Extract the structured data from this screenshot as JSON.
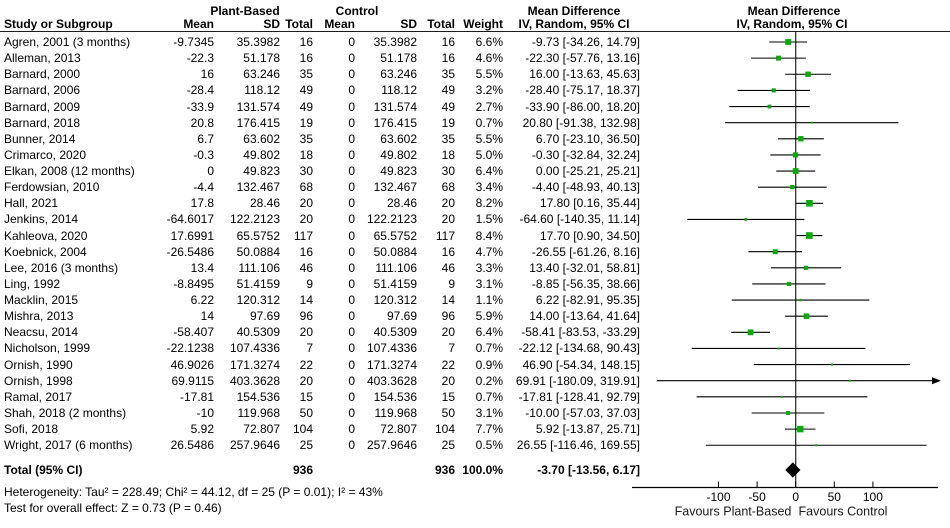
{
  "chart_data": {
    "type": "forest",
    "group_headers": {
      "plant_based": "Plant-Based",
      "control": "Control"
    },
    "column_headers": {
      "study": "Study or Subgroup",
      "pb_mean": "Mean",
      "pb_sd": "SD",
      "pb_total": "Total",
      "c_mean": "Mean",
      "c_sd": "SD",
      "c_total": "Total",
      "weight": "Weight",
      "md_title": "Mean Difference",
      "md_subtitle": "IV, Random, 95% CI",
      "plot_title": "Mean Difference",
      "plot_subtitle": "IV, Random, 95% CI"
    },
    "studies": [
      {
        "study": "Agren, 2001 (3 months)",
        "pb_mean": "-9.7345",
        "pb_sd": "35.3982",
        "pb_total": "16",
        "c_mean": "0",
        "c_sd": "35.3982",
        "c_total": "16",
        "weight": "6.6%",
        "md_label": "-9.73 [-34.26, 14.79]",
        "est": -9.73,
        "lo": -34.26,
        "hi": 14.79,
        "w": 6.6
      },
      {
        "study": "Alleman, 2013",
        "pb_mean": "-22.3",
        "pb_sd": "51.178",
        "pb_total": "16",
        "c_mean": "0",
        "c_sd": "51.178",
        "c_total": "16",
        "weight": "4.6%",
        "md_label": "-22.30 [-57.76, 13.16]",
        "est": -22.3,
        "lo": -57.76,
        "hi": 13.16,
        "w": 4.6
      },
      {
        "study": "Barnard, 2000",
        "pb_mean": "16",
        "pb_sd": "63.246",
        "pb_total": "35",
        "c_mean": "0",
        "c_sd": "63.246",
        "c_total": "35",
        "weight": "5.5%",
        "md_label": "16.00 [-13.63, 45.63]",
        "est": 16.0,
        "lo": -13.63,
        "hi": 45.63,
        "w": 5.5
      },
      {
        "study": "Barnard, 2006",
        "pb_mean": "-28.4",
        "pb_sd": "118.12",
        "pb_total": "49",
        "c_mean": "0",
        "c_sd": "118.12",
        "c_total": "49",
        "weight": "3.2%",
        "md_label": "-28.40 [-75.17, 18.37]",
        "est": -28.4,
        "lo": -75.17,
        "hi": 18.37,
        "w": 3.2
      },
      {
        "study": "Barnard, 2009",
        "pb_mean": "-33.9",
        "pb_sd": "131.574",
        "pb_total": "49",
        "c_mean": "0",
        "c_sd": "131.574",
        "c_total": "49",
        "weight": "2.7%",
        "md_label": "-33.90 [-86.00, 18.20]",
        "est": -33.9,
        "lo": -86.0,
        "hi": 18.2,
        "w": 2.7
      },
      {
        "study": "Barnard, 2018",
        "pb_mean": "20.8",
        "pb_sd": "176.415",
        "pb_total": "19",
        "c_mean": "0",
        "c_sd": "176.415",
        "c_total": "19",
        "weight": "0.7%",
        "md_label": "20.80 [-91.38, 132.98]",
        "est": 20.8,
        "lo": -91.38,
        "hi": 132.98,
        "w": 0.7
      },
      {
        "study": "Bunner, 2014",
        "pb_mean": "6.7",
        "pb_sd": "63.602",
        "pb_total": "35",
        "c_mean": "0",
        "c_sd": "63.602",
        "c_total": "35",
        "weight": "5.5%",
        "md_label": "6.70 [-23.10, 36.50]",
        "est": 6.7,
        "lo": -23.1,
        "hi": 36.5,
        "w": 5.5
      },
      {
        "study": "Crimarco, 2020",
        "pb_mean": "-0.3",
        "pb_sd": "49.802",
        "pb_total": "18",
        "c_mean": "0",
        "c_sd": "49.802",
        "c_total": "18",
        "weight": "5.0%",
        "md_label": "-0.30 [-32.84, 32.24]",
        "est": -0.3,
        "lo": -32.84,
        "hi": 32.24,
        "w": 5.0
      },
      {
        "study": "Elkan, 2008 (12 months)",
        "pb_mean": "0",
        "pb_sd": "49.823",
        "pb_total": "30",
        "c_mean": "0",
        "c_sd": "49.823",
        "c_total": "30",
        "weight": "6.4%",
        "md_label": "0.00 [-25.21, 25.21]",
        "est": 0.0,
        "lo": -25.21,
        "hi": 25.21,
        "w": 6.4
      },
      {
        "study": "Ferdowsian, 2010",
        "pb_mean": "-4.4",
        "pb_sd": "132.467",
        "pb_total": "68",
        "c_mean": "0",
        "c_sd": "132.467",
        "c_total": "68",
        "weight": "3.4%",
        "md_label": "-4.40 [-48.93, 40.13]",
        "est": -4.4,
        "lo": -48.93,
        "hi": 40.13,
        "w": 3.4
      },
      {
        "study": "Hall, 2021",
        "pb_mean": "17.8",
        "pb_sd": "28.46",
        "pb_total": "20",
        "c_mean": "0",
        "c_sd": "28.46",
        "c_total": "20",
        "weight": "8.2%",
        "md_label": "17.80 [0.16, 35.44]",
        "est": 17.8,
        "lo": 0.16,
        "hi": 35.44,
        "w": 8.2
      },
      {
        "study": "Jenkins, 2014",
        "pb_mean": "-64.6017",
        "pb_sd": "122.2123",
        "pb_total": "20",
        "c_mean": "0",
        "c_sd": "122.2123",
        "c_total": "20",
        "weight": "1.5%",
        "md_label": "-64.60 [-140.35, 11.14]",
        "est": -64.6,
        "lo": -140.35,
        "hi": 11.14,
        "w": 1.5
      },
      {
        "study": "Kahleova, 2020",
        "pb_mean": "17.6991",
        "pb_sd": "65.5752",
        "pb_total": "117",
        "c_mean": "0",
        "c_sd": "65.5752",
        "c_total": "117",
        "weight": "8.4%",
        "md_label": "17.70 [0.90, 34.50]",
        "est": 17.7,
        "lo": 0.9,
        "hi": 34.5,
        "w": 8.4
      },
      {
        "study": "Koebnick, 2004",
        "pb_mean": "-26.5486",
        "pb_sd": "50.0884",
        "pb_total": "16",
        "c_mean": "0",
        "c_sd": "50.0884",
        "c_total": "16",
        "weight": "4.7%",
        "md_label": "-26.55 [-61.26, 8.16]",
        "est": -26.55,
        "lo": -61.26,
        "hi": 8.16,
        "w": 4.7
      },
      {
        "study": "Lee, 2016 (3 months)",
        "pb_mean": "13.4",
        "pb_sd": "111.106",
        "pb_total": "46",
        "c_mean": "0",
        "c_sd": "111.106",
        "c_total": "46",
        "weight": "3.3%",
        "md_label": "13.40 [-32.01, 58.81]",
        "est": 13.4,
        "lo": -32.01,
        "hi": 58.81,
        "w": 3.3
      },
      {
        "study": "Ling, 1992",
        "pb_mean": "-8.8495",
        "pb_sd": "51.4159",
        "pb_total": "9",
        "c_mean": "0",
        "c_sd": "51.4159",
        "c_total": "9",
        "weight": "3.1%",
        "md_label": "-8.85 [-56.35, 38.66]",
        "est": -8.85,
        "lo": -56.35,
        "hi": 38.66,
        "w": 3.1
      },
      {
        "study": "Macklin, 2015",
        "pb_mean": "6.22",
        "pb_sd": "120.312",
        "pb_total": "14",
        "c_mean": "0",
        "c_sd": "120.312",
        "c_total": "14",
        "weight": "1.1%",
        "md_label": "6.22 [-82.91, 95.35]",
        "est": 6.22,
        "lo": -82.91,
        "hi": 95.35,
        "w": 1.1
      },
      {
        "study": "Mishra, 2013",
        "pb_mean": "14",
        "pb_sd": "97.69",
        "pb_total": "96",
        "c_mean": "0",
        "c_sd": "97.69",
        "c_total": "96",
        "weight": "5.9%",
        "md_label": "14.00 [-13.64, 41.64]",
        "est": 14.0,
        "lo": -13.64,
        "hi": 41.64,
        "w": 5.9
      },
      {
        "study": "Neacsu, 2014",
        "pb_mean": "-58.407",
        "pb_sd": "40.5309",
        "pb_total": "20",
        "c_mean": "0",
        "c_sd": "40.5309",
        "c_total": "20",
        "weight": "6.4%",
        "md_label": "-58.41 [-83.53, -33.29]",
        "est": -58.41,
        "lo": -83.53,
        "hi": -33.29,
        "w": 6.4
      },
      {
        "study": "Nicholson, 1999",
        "pb_mean": "-22.1238",
        "pb_sd": "107.4336",
        "pb_total": "7",
        "c_mean": "0",
        "c_sd": "107.4336",
        "c_total": "7",
        "weight": "0.7%",
        "md_label": "-22.12 [-134.68, 90.43]",
        "est": -22.12,
        "lo": -134.68,
        "hi": 90.43,
        "w": 0.7
      },
      {
        "study": "Ornish, 1990",
        "pb_mean": "46.9026",
        "pb_sd": "171.3274",
        "pb_total": "22",
        "c_mean": "0",
        "c_sd": "171.3274",
        "c_total": "22",
        "weight": "0.9%",
        "md_label": "46.90 [-54.34, 148.15]",
        "est": 46.9,
        "lo": -54.34,
        "hi": 148.15,
        "w": 0.9
      },
      {
        "study": "Ornish, 1998",
        "pb_mean": "69.9115",
        "pb_sd": "403.3628",
        "pb_total": "20",
        "c_mean": "0",
        "c_sd": "403.3628",
        "c_total": "20",
        "weight": "0.2%",
        "md_label": "69.91 [-180.09, 319.91]",
        "est": 69.91,
        "lo": -180.09,
        "hi": 319.91,
        "w": 0.2
      },
      {
        "study": "Ramal, 2017",
        "pb_mean": "-17.81",
        "pb_sd": "154.536",
        "pb_total": "15",
        "c_mean": "0",
        "c_sd": "154.536",
        "c_total": "15",
        "weight": "0.7%",
        "md_label": "-17.81 [-128.41, 92.79]",
        "est": -17.81,
        "lo": -128.41,
        "hi": 92.79,
        "w": 0.7
      },
      {
        "study": "Shah, 2018 (2 months)",
        "pb_mean": "-10",
        "pb_sd": "119.968",
        "pb_total": "50",
        "c_mean": "0",
        "c_sd": "119.968",
        "c_total": "50",
        "weight": "3.1%",
        "md_label": "-10.00 [-57.03, 37.03]",
        "est": -10.0,
        "lo": -57.03,
        "hi": 37.03,
        "w": 3.1
      },
      {
        "study": "Sofi, 2018",
        "pb_mean": "5.92",
        "pb_sd": "72.807",
        "pb_total": "104",
        "c_mean": "0",
        "c_sd": "72.807",
        "c_total": "104",
        "weight": "7.7%",
        "md_label": "5.92 [-13.87, 25.71]",
        "est": 5.92,
        "lo": -13.87,
        "hi": 25.71,
        "w": 7.7
      },
      {
        "study": "Wright, 2017 (6 months)",
        "pb_mean": "26.5486",
        "pb_sd": "257.9646",
        "pb_total": "25",
        "c_mean": "0",
        "c_sd": "257.9646",
        "c_total": "25",
        "weight": "0.5%",
        "md_label": "26.55 [-116.46, 169.55]",
        "est": 26.55,
        "lo": -116.46,
        "hi": 169.55,
        "w": 0.5
      }
    ],
    "totals": {
      "label": "Total (95% CI)",
      "pb_total": "936",
      "c_total": "936",
      "weight": "100.0%",
      "md_label": "-3.70 [-13.56, 6.17]",
      "est": -3.7,
      "lo": -13.56,
      "hi": 6.17
    },
    "heterogeneity_text": "Heterogeneity: Tau² = 228.49; Chi² = 44.12, df = 25 (P = 0.01); I² = 43%",
    "overall_effect_text": "Test for overall effect: Z = 0.73 (P = 0.46)",
    "axis": {
      "ticks": [
        -100,
        -50,
        0,
        50,
        100
      ],
      "tick_labels": [
        "-100",
        "-50",
        "0",
        "50",
        "100"
      ],
      "left_label": "Favours Plant-Based",
      "right_label": "Favours Control"
    },
    "colors": {
      "marker": "#00b000",
      "diamond": "#000000",
      "line": "#000000"
    }
  }
}
